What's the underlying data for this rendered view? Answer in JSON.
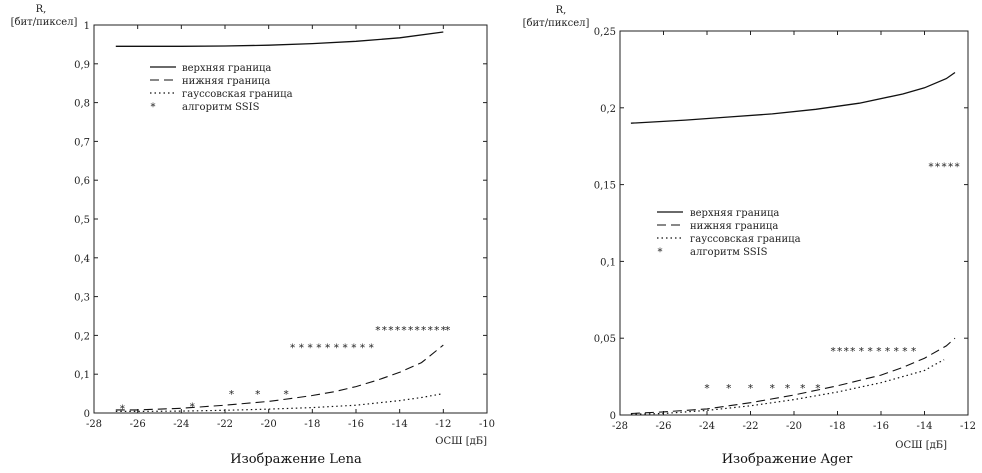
{
  "chart_data": [
    {
      "type": "line",
      "caption": "Изображение Lena",
      "ylabel_line1": "R,",
      "ylabel_line2": "[бит/пиксел]",
      "xlabel": "ОСШ [дБ]",
      "xlim": [
        -28,
        -10
      ],
      "ylim": [
        0,
        1
      ],
      "xticks": [
        -28,
        -26,
        -24,
        -22,
        -20,
        -18,
        -16,
        -14,
        -12,
        -10
      ],
      "xtick_labels": [
        "-28",
        "-26",
        "-24",
        "-22",
        "-20",
        "-18",
        "-16",
        "-14",
        "-12",
        "-10"
      ],
      "yticks": [
        0,
        0.1,
        0.2,
        0.3,
        0.4,
        0.5,
        0.6,
        0.7,
        0.8,
        0.9,
        1
      ],
      "ytick_labels": [
        "0",
        "0,1",
        "0,2",
        "0,3",
        "0,4",
        "0,5",
        "0,6",
        "0,7",
        "0,8",
        "0,9",
        "1"
      ],
      "legend_position": "top-left",
      "series": [
        {
          "name": "верхняя граница",
          "style": "solid",
          "x": [
            -27,
            -24,
            -22,
            -20,
            -18,
            -16,
            -14,
            -12
          ],
          "y": [
            0.945,
            0.945,
            0.946,
            0.948,
            0.952,
            0.958,
            0.967,
            0.982
          ]
        },
        {
          "name": "нижняя граница",
          "style": "dashed",
          "x": [
            -27,
            -26,
            -24,
            -22,
            -20,
            -19,
            -18,
            -17,
            -16,
            -15,
            -14,
            -13,
            -12
          ],
          "y": [
            0.008,
            0.008,
            0.012,
            0.02,
            0.03,
            0.037,
            0.045,
            0.055,
            0.068,
            0.085,
            0.105,
            0.13,
            0.175
          ]
        },
        {
          "name": "гауссовская граница",
          "style": "dotted",
          "x": [
            -27,
            -26,
            -24,
            -22,
            -20,
            -18,
            -16,
            -14,
            -13,
            -12
          ],
          "y": [
            0.004,
            0.004,
            0.005,
            0.007,
            0.01,
            0.014,
            0.02,
            0.032,
            0.04,
            0.05
          ]
        },
        {
          "name": "алгоритм SSIS",
          "style": "marker",
          "x": [
            -26.7,
            -23.5,
            -21.7,
            -20.5,
            -19.2,
            -18.9,
            -18.5,
            -18.1,
            -17.7,
            -17.3,
            -16.9,
            -16.5,
            -16.1,
            -15.7,
            -15.3,
            -15.0,
            -14.7,
            -14.4,
            -14.1,
            -13.8,
            -13.5,
            -13.2,
            -12.9,
            -12.6,
            -12.3,
            -12.0,
            -11.8
          ],
          "y": [
            0.013,
            0.018,
            0.05,
            0.05,
            0.05,
            0.17,
            0.17,
            0.17,
            0.17,
            0.17,
            0.17,
            0.17,
            0.17,
            0.17,
            0.17,
            0.215,
            0.215,
            0.215,
            0.215,
            0.215,
            0.215,
            0.215,
            0.215,
            0.215,
            0.215,
            0.215,
            0.215
          ]
        }
      ]
    },
    {
      "type": "line",
      "caption": "Изображение Ager",
      "ylabel_line1": "R,",
      "ylabel_line2": "[бит/пиксел]",
      "xlabel": "ОСШ [дБ]",
      "xlim": [
        -28,
        -12
      ],
      "ylim": [
        0,
        0.25
      ],
      "xticks": [
        -28,
        -26,
        -24,
        -22,
        -20,
        -18,
        -16,
        -14,
        -12
      ],
      "xtick_labels": [
        "-28",
        "-26",
        "-24",
        "-22",
        "-20",
        "-18",
        "-16",
        "-14",
        "-12"
      ],
      "yticks": [
        0,
        0.05,
        0.1,
        0.15,
        0.2,
        0.25
      ],
      "ytick_labels": [
        "0",
        "0,05",
        "0,1",
        "0,15",
        "0,2",
        "0,25"
      ],
      "legend_position": "center-left",
      "series": [
        {
          "name": "верхняя граница",
          "style": "solid",
          "x": [
            -27.5,
            -25,
            -23,
            -21,
            -19,
            -17,
            -15,
            -14,
            -13,
            -12.6
          ],
          "y": [
            0.19,
            0.192,
            0.194,
            0.196,
            0.199,
            0.203,
            0.209,
            0.213,
            0.219,
            0.223
          ]
        },
        {
          "name": "нижняя граница",
          "style": "dashed",
          "x": [
            -27.5,
            -26,
            -24,
            -22,
            -20,
            -18,
            -16,
            -15,
            -14,
            -13,
            -12.6
          ],
          "y": [
            0.001,
            0.002,
            0.004,
            0.008,
            0.013,
            0.019,
            0.026,
            0.031,
            0.037,
            0.045,
            0.05
          ]
        },
        {
          "name": "гауссовская граница",
          "style": "dotted",
          "x": [
            -27.5,
            -26,
            -24,
            -22,
            -20,
            -18,
            -16,
            -15,
            -14,
            -13.5,
            -13.1
          ],
          "y": [
            0.0005,
            0.001,
            0.003,
            0.006,
            0.01,
            0.015,
            0.021,
            0.025,
            0.029,
            0.033,
            0.036
          ]
        },
        {
          "name": "алгоритм SSIS",
          "style": "marker",
          "x": [
            -24,
            -23,
            -22,
            -21,
            -20.3,
            -19.6,
            -18.9,
            -18.2,
            -17.9,
            -17.6,
            -17.3,
            -16.9,
            -16.5,
            -16.1,
            -15.7,
            -15.3,
            -14.9,
            -14.5,
            -13.7,
            -13.4,
            -13.1,
            -12.8,
            -12.5
          ],
          "y": [
            0.018,
            0.018,
            0.018,
            0.018,
            0.018,
            0.018,
            0.018,
            0.042,
            0.042,
            0.042,
            0.042,
            0.042,
            0.042,
            0.042,
            0.042,
            0.042,
            0.042,
            0.042,
            0.162,
            0.162,
            0.162,
            0.162,
            0.162
          ]
        }
      ]
    }
  ]
}
